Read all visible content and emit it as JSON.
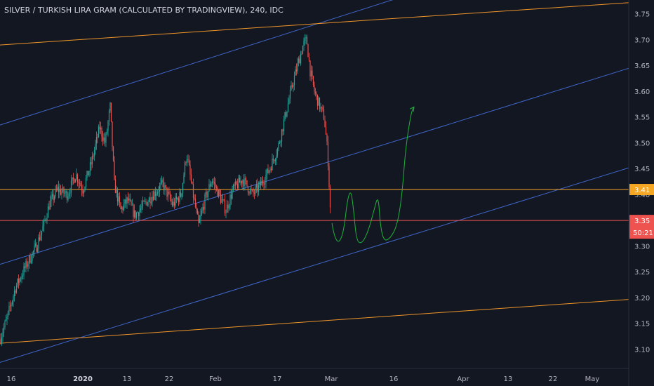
{
  "header": {
    "title": "SILVER / TURKISH LIRA GRAM (CALCULATED BY TRADINGVIEW), 240, IDC"
  },
  "colors": {
    "background": "#131722",
    "up": "#26a69a",
    "down": "#ef5350",
    "axis_text": "#b2b5be",
    "channel_blue": "#3f66c9",
    "channel_orange": "#f0952a",
    "level_orange": "#f5a623",
    "level_red": "#ef5350",
    "projection_green": "#1fb33a"
  },
  "chart_data": {
    "type": "candlestick",
    "title": "SILVER / TURKISH LIRA GRAM (CALCULATED BY TRADINGVIEW), 240, IDC",
    "y_range": [
      3.07,
      3.775
    ],
    "y_ticks": [
      "3.10",
      "3.15",
      "3.20",
      "3.25",
      "3.30",
      "3.35",
      "3.40",
      "3.45",
      "3.50",
      "3.55",
      "3.60",
      "3.65",
      "3.70",
      "3.75"
    ],
    "x_ticks": [
      {
        "label": "16",
        "bold": false
      },
      {
        "label": "2020",
        "bold": true
      },
      {
        "label": "13",
        "bold": false
      },
      {
        "label": "22",
        "bold": false
      },
      {
        "label": "Feb",
        "bold": false
      },
      {
        "label": "17",
        "bold": false
      },
      {
        "label": "Mar",
        "bold": false
      },
      {
        "label": "16",
        "bold": false
      },
      {
        "label": "Apr",
        "bold": false
      },
      {
        "label": "13",
        "bold": false
      },
      {
        "label": "22",
        "bold": false
      },
      {
        "label": "May",
        "bold": false
      }
    ],
    "price_path": [
      [
        0,
        3.12
      ],
      [
        10,
        3.16
      ],
      [
        22,
        3.22
      ],
      [
        40,
        3.27
      ],
      [
        52,
        3.3
      ],
      [
        62,
        3.34
      ],
      [
        70,
        3.38
      ],
      [
        82,
        3.41
      ],
      [
        96,
        3.4
      ],
      [
        108,
        3.44
      ],
      [
        118,
        3.41
      ],
      [
        130,
        3.46
      ],
      [
        142,
        3.53
      ],
      [
        150,
        3.5
      ],
      [
        157,
        3.57
      ],
      [
        163,
        3.42
      ],
      [
        172,
        3.37
      ],
      [
        182,
        3.39
      ],
      [
        192,
        3.36
      ],
      [
        205,
        3.38
      ],
      [
        218,
        3.4
      ],
      [
        232,
        3.42
      ],
      [
        246,
        3.38
      ],
      [
        258,
        3.4
      ],
      [
        266,
        3.48
      ],
      [
        274,
        3.41
      ],
      [
        283,
        3.34
      ],
      [
        292,
        3.39
      ],
      [
        302,
        3.43
      ],
      [
        312,
        3.4
      ],
      [
        322,
        3.37
      ],
      [
        332,
        3.41
      ],
      [
        346,
        3.43
      ],
      [
        360,
        3.4
      ],
      [
        372,
        3.42
      ],
      [
        384,
        3.45
      ],
      [
        396,
        3.49
      ],
      [
        406,
        3.55
      ],
      [
        418,
        3.62
      ],
      [
        426,
        3.66
      ],
      [
        432,
        3.69
      ],
      [
        437,
        3.7
      ],
      [
        442,
        3.64
      ],
      [
        448,
        3.6
      ],
      [
        456,
        3.57
      ],
      [
        462,
        3.55
      ],
      [
        467,
        3.48
      ],
      [
        471,
        3.36
      ]
    ],
    "levels": [
      {
        "name": "resistance",
        "value": 3.41,
        "label": "3.41",
        "color": "#f5a623"
      },
      {
        "name": "current-price",
        "value": 3.35,
        "label": "3.35",
        "color": "#ef5350"
      }
    ],
    "countdown": "50:21",
    "trendlines": [
      {
        "name": "blue-channel-top",
        "color": "#3f66c9",
        "points": [
          [
            "left",
            3.535
          ],
          [
            588,
            3.79
          ]
        ]
      },
      {
        "name": "blue-channel-mid",
        "color": "#3f66c9",
        "points": [
          [
            "left",
            3.265
          ],
          [
            "right",
            3.645
          ]
        ]
      },
      {
        "name": "blue-channel-bottom",
        "color": "#3f66c9",
        "points": [
          [
            "left",
            3.075
          ],
          [
            "right",
            3.452
          ]
        ]
      },
      {
        "name": "orange-channel-top",
        "color": "#f0952a",
        "points": [
          [
            "left",
            3.69
          ],
          [
            "right",
            3.772
          ]
        ]
      },
      {
        "name": "orange-channel-bottom",
        "color": "#f0952a",
        "points": [
          [
            "left",
            3.112
          ],
          [
            "right",
            3.197
          ]
        ]
      }
    ],
    "projection": {
      "color": "#1fb33a",
      "points": [
        [
          473,
          3.345
        ],
        [
          476,
          3.32
        ],
        [
          483,
          3.305
        ],
        [
          490,
          3.33
        ],
        [
          495,
          3.39
        ],
        [
          500,
          3.41
        ],
        [
          504,
          3.37
        ],
        [
          508,
          3.31
        ],
        [
          516,
          3.305
        ],
        [
          525,
          3.33
        ],
        [
          533,
          3.37
        ],
        [
          539,
          3.4
        ],
        [
          542,
          3.34
        ],
        [
          547,
          3.31
        ],
        [
          556,
          3.315
        ],
        [
          566,
          3.34
        ],
        [
          573,
          3.4
        ],
        [
          578,
          3.49
        ],
        [
          586,
          3.56
        ],
        [
          590,
          3.57
        ]
      ]
    }
  }
}
